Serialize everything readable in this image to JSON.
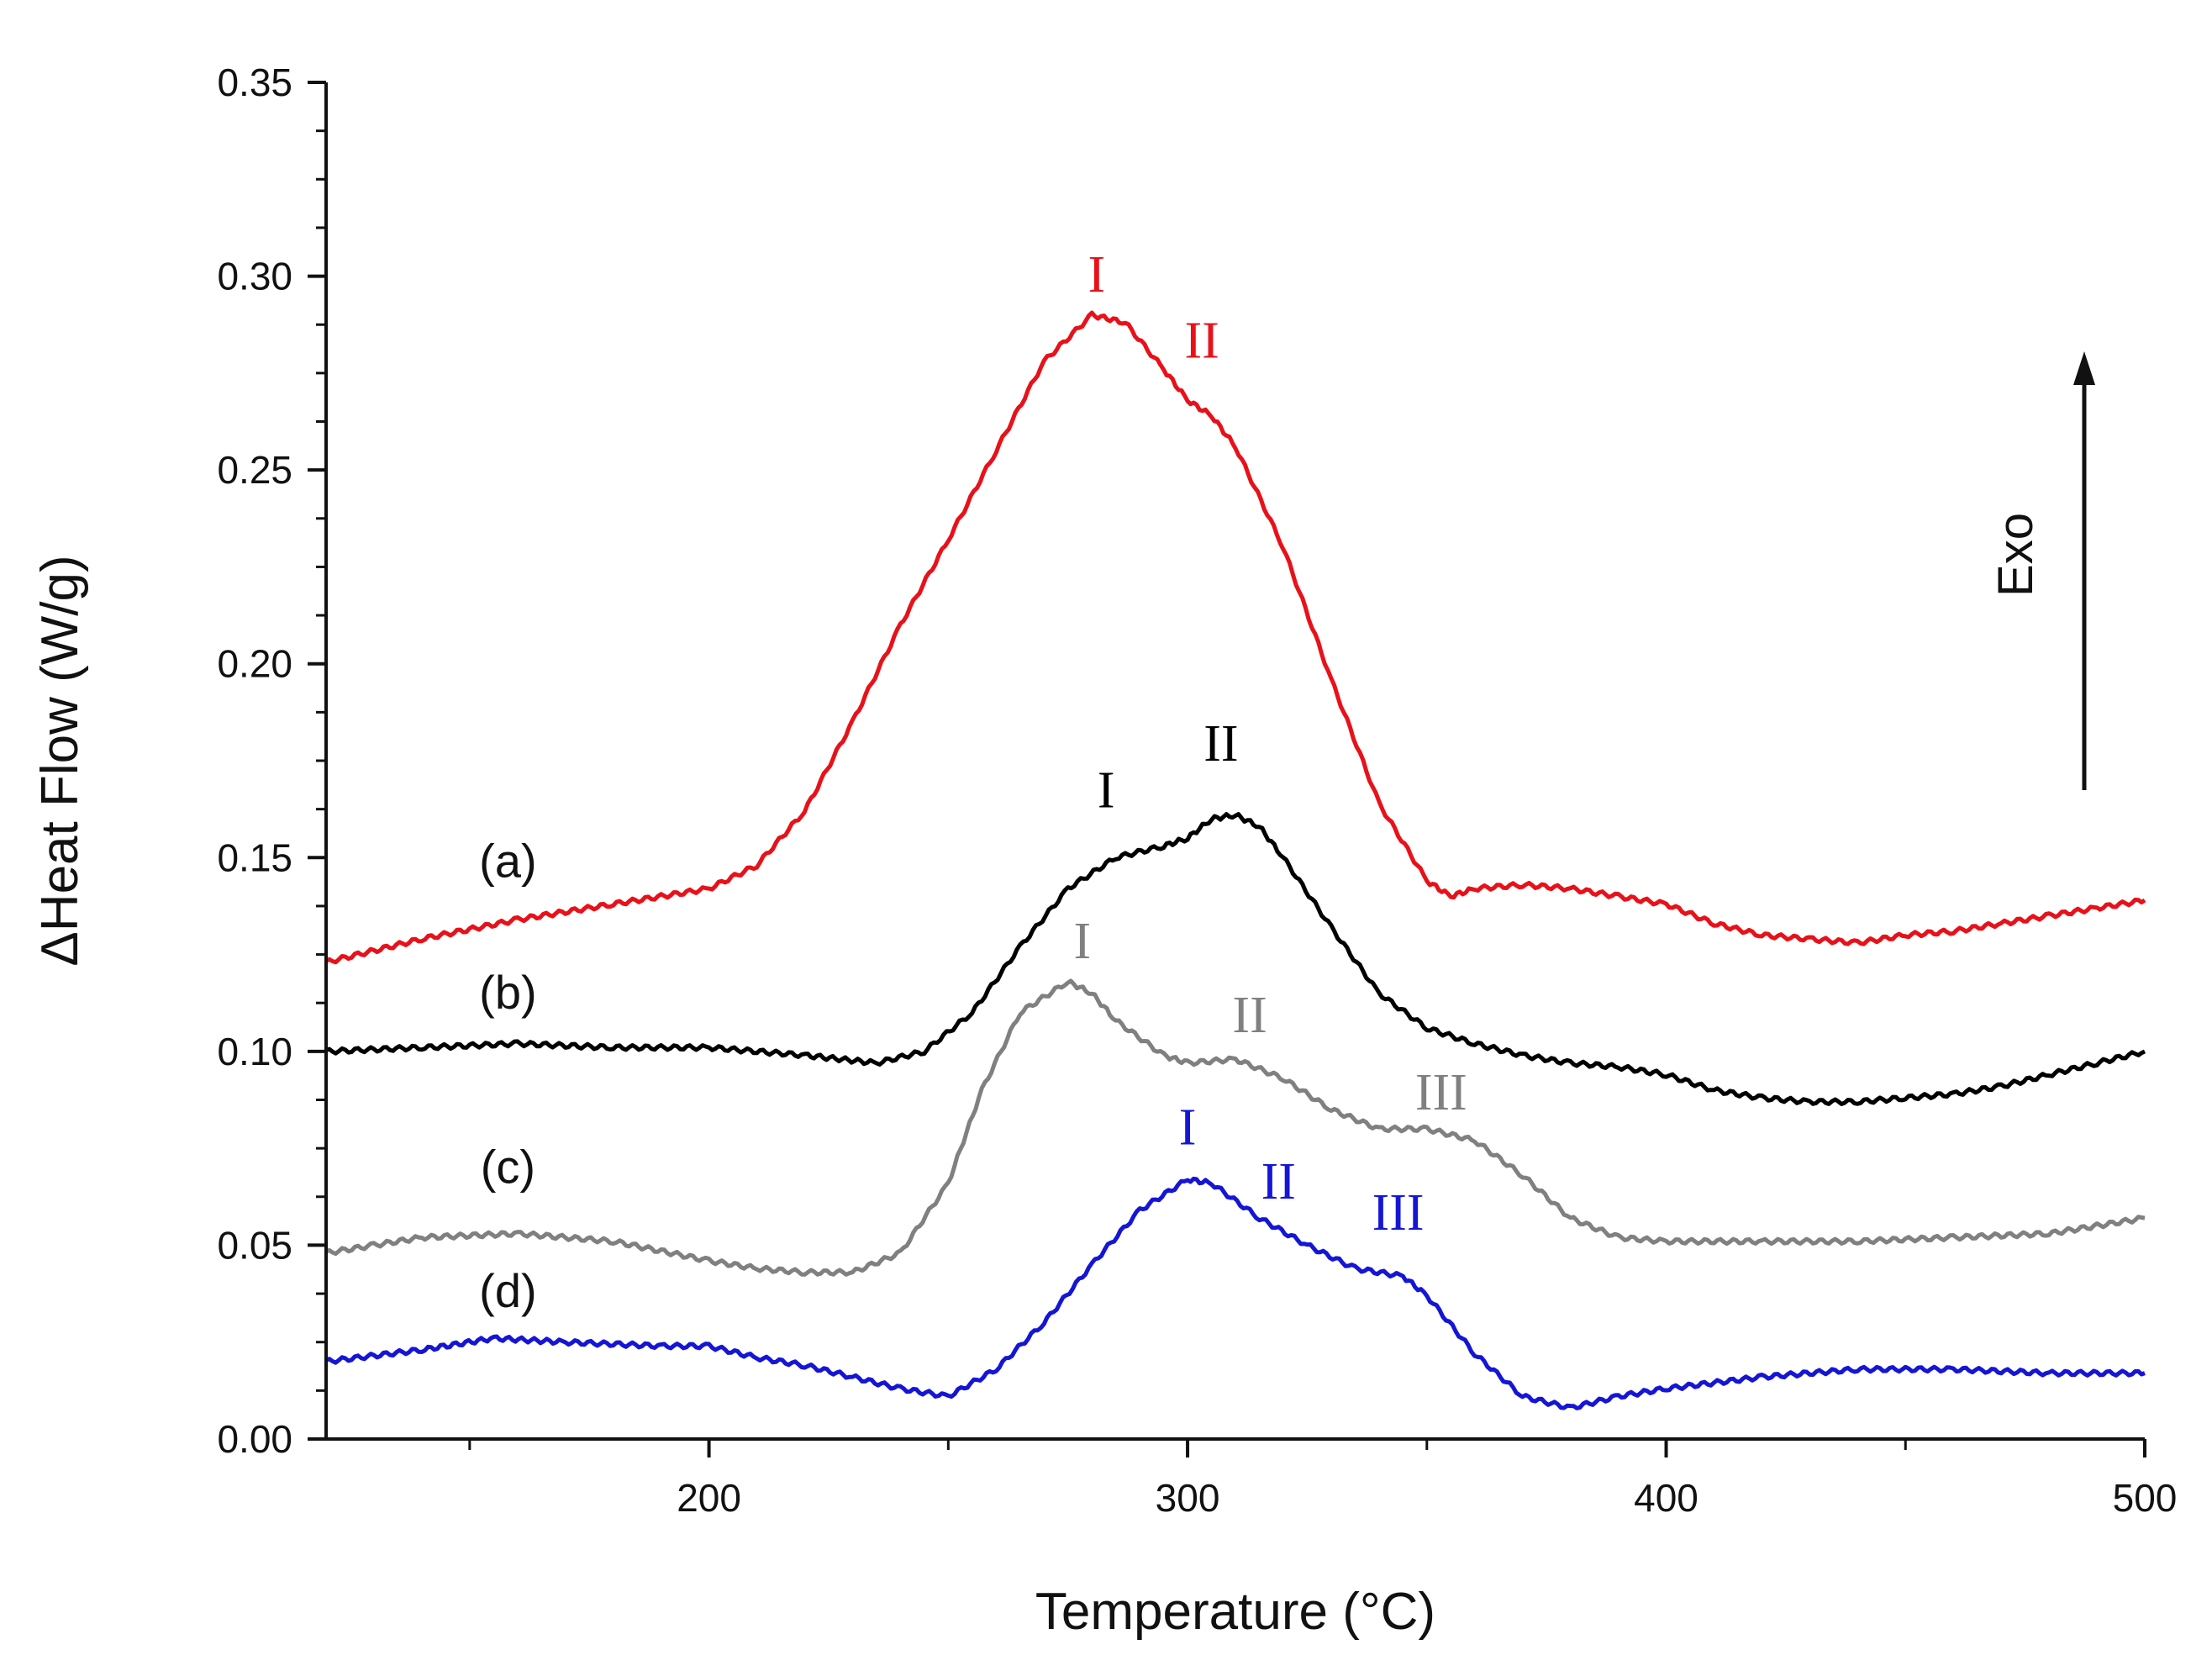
{
  "chart_data": {
    "type": "line",
    "title": "",
    "xlabel": "Temperature (°C)",
    "ylabel": "ΔHeat Flow (W/g)",
    "xlim": [
      120,
      500
    ],
    "ylim": [
      0.0,
      0.35
    ],
    "x_ticks": [
      200,
      300,
      400,
      500
    ],
    "x_tick_labels": [
      "200",
      "300",
      "400",
      "500"
    ],
    "y_ticks": [
      0.0,
      0.05,
      0.1,
      0.15,
      0.2,
      0.25,
      0.3,
      0.35
    ],
    "y_tick_labels": [
      "0.00",
      "0.05",
      "0.10",
      "0.15",
      "0.20",
      "0.25",
      "0.30",
      "0.35"
    ],
    "grid": false,
    "exo_label": "Exo",
    "series": [
      {
        "name": "(a)",
        "color": "#e8111a",
        "points": [
          [
            120,
            0.123
          ],
          [
            140,
            0.129
          ],
          [
            160,
            0.134
          ],
          [
            180,
            0.138
          ],
          [
            200,
            0.142
          ],
          [
            210,
            0.148
          ],
          [
            220,
            0.162
          ],
          [
            230,
            0.185
          ],
          [
            240,
            0.21
          ],
          [
            250,
            0.232
          ],
          [
            260,
            0.255
          ],
          [
            270,
            0.278
          ],
          [
            280,
            0.29
          ],
          [
            287,
            0.288
          ],
          [
            295,
            0.276
          ],
          [
            300,
            0.268
          ],
          [
            305,
            0.264
          ],
          [
            310,
            0.256
          ],
          [
            320,
            0.23
          ],
          [
            330,
            0.196
          ],
          [
            340,
            0.164
          ],
          [
            350,
            0.144
          ],
          [
            355,
            0.14
          ],
          [
            360,
            0.142
          ],
          [
            370,
            0.143
          ],
          [
            380,
            0.142
          ],
          [
            390,
            0.14
          ],
          [
            400,
            0.138
          ],
          [
            410,
            0.133
          ],
          [
            420,
            0.13
          ],
          [
            430,
            0.129
          ],
          [
            440,
            0.128
          ],
          [
            450,
            0.13
          ],
          [
            460,
            0.131
          ],
          [
            470,
            0.133
          ],
          [
            480,
            0.135
          ],
          [
            490,
            0.137
          ],
          [
            500,
            0.139
          ]
        ],
        "peak_labels": [
          {
            "text": "I",
            "x": 281,
            "y": 0.296
          },
          {
            "text": "II",
            "x": 303,
            "y": 0.279
          }
        ]
      },
      {
        "name": "(b)",
        "color": "#000000",
        "points": [
          [
            120,
            0.1
          ],
          [
            140,
            0.101
          ],
          [
            160,
            0.102
          ],
          [
            180,
            0.101
          ],
          [
            200,
            0.101
          ],
          [
            220,
            0.099
          ],
          [
            235,
            0.097
          ],
          [
            245,
            0.1
          ],
          [
            255,
            0.11
          ],
          [
            265,
            0.127
          ],
          [
            275,
            0.142
          ],
          [
            285,
            0.15
          ],
          [
            295,
            0.153
          ],
          [
            300,
            0.155
          ],
          [
            305,
            0.16
          ],
          [
            310,
            0.161
          ],
          [
            315,
            0.158
          ],
          [
            320,
            0.15
          ],
          [
            330,
            0.132
          ],
          [
            340,
            0.115
          ],
          [
            350,
            0.106
          ],
          [
            360,
            0.102
          ],
          [
            370,
            0.099
          ],
          [
            380,
            0.097
          ],
          [
            390,
            0.096
          ],
          [
            400,
            0.094
          ],
          [
            410,
            0.09
          ],
          [
            420,
            0.088
          ],
          [
            430,
            0.087
          ],
          [
            440,
            0.087
          ],
          [
            450,
            0.088
          ],
          [
            460,
            0.089
          ],
          [
            470,
            0.091
          ],
          [
            480,
            0.094
          ],
          [
            490,
            0.097
          ],
          [
            500,
            0.1
          ]
        ],
        "peak_labels": [
          {
            "text": "I",
            "x": 283,
            "y": 0.163
          },
          {
            "text": "II",
            "x": 307,
            "y": 0.175
          }
        ]
      },
      {
        "name": "(c)",
        "color": "#808080",
        "points": [
          [
            120,
            0.048
          ],
          [
            130,
            0.05
          ],
          [
            140,
            0.052
          ],
          [
            160,
            0.053
          ],
          [
            180,
            0.051
          ],
          [
            200,
            0.046
          ],
          [
            210,
            0.044
          ],
          [
            220,
            0.043
          ],
          [
            230,
            0.043
          ],
          [
            240,
            0.048
          ],
          [
            250,
            0.066
          ],
          [
            257,
            0.09
          ],
          [
            265,
            0.11
          ],
          [
            275,
            0.118
          ],
          [
            280,
            0.115
          ],
          [
            285,
            0.108
          ],
          [
            295,
            0.099
          ],
          [
            300,
            0.097
          ],
          [
            310,
            0.098
          ],
          [
            320,
            0.093
          ],
          [
            330,
            0.085
          ],
          [
            340,
            0.08
          ],
          [
            350,
            0.08
          ],
          [
            360,
            0.077
          ],
          [
            370,
            0.068
          ],
          [
            380,
            0.057
          ],
          [
            390,
            0.052
          ],
          [
            400,
            0.051
          ],
          [
            420,
            0.051
          ],
          [
            440,
            0.051
          ],
          [
            460,
            0.052
          ],
          [
            480,
            0.053
          ],
          [
            500,
            0.057
          ]
        ],
        "peak_labels": [
          {
            "text": "I",
            "x": 278,
            "y": 0.124
          },
          {
            "text": "II",
            "x": 313,
            "y": 0.105
          },
          {
            "text": "III",
            "x": 353,
            "y": 0.085
          }
        ]
      },
      {
        "name": "(d)",
        "color": "#1515d6",
        "points": [
          [
            120,
            0.02
          ],
          [
            140,
            0.023
          ],
          [
            155,
            0.026
          ],
          [
            170,
            0.025
          ],
          [
            190,
            0.024
          ],
          [
            200,
            0.024
          ],
          [
            210,
            0.021
          ],
          [
            220,
            0.019
          ],
          [
            230,
            0.016
          ],
          [
            240,
            0.013
          ],
          [
            250,
            0.011
          ],
          [
            260,
            0.018
          ],
          [
            270,
            0.03
          ],
          [
            280,
            0.045
          ],
          [
            290,
            0.059
          ],
          [
            300,
            0.067
          ],
          [
            305,
            0.066
          ],
          [
            315,
            0.057
          ],
          [
            325,
            0.05
          ],
          [
            335,
            0.044
          ],
          [
            345,
            0.042
          ],
          [
            350,
            0.037
          ],
          [
            360,
            0.022
          ],
          [
            370,
            0.011
          ],
          [
            380,
            0.008
          ],
          [
            390,
            0.011
          ],
          [
            400,
            0.013
          ],
          [
            420,
            0.016
          ],
          [
            440,
            0.018
          ],
          [
            460,
            0.018
          ],
          [
            480,
            0.017
          ],
          [
            500,
            0.017
          ]
        ],
        "peak_labels": [
          {
            "text": "I",
            "x": 300,
            "y": 0.076
          },
          {
            "text": "II",
            "x": 319,
            "y": 0.062
          },
          {
            "text": "III",
            "x": 344,
            "y": 0.054
          }
        ]
      }
    ],
    "curve_labels": [
      {
        "text": "(a)",
        "x": 158,
        "y": 0.145
      },
      {
        "text": "(b)",
        "x": 158,
        "y": 0.111
      },
      {
        "text": "(c)",
        "x": 158,
        "y": 0.066
      },
      {
        "text": "(d)",
        "x": 158,
        "y": 0.034
      }
    ]
  }
}
